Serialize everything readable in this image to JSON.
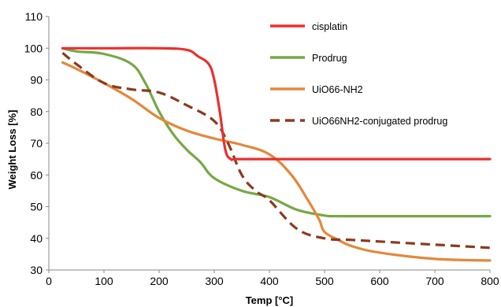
{
  "chart_data": {
    "type": "line",
    "xlabel": "Temp [°C]",
    "ylabel": "Weight Loss [%]",
    "xlim": [
      0,
      800
    ],
    "ylim": [
      30,
      110
    ],
    "xticks": [
      "0",
      "100",
      "200",
      "300",
      "400",
      "500",
      "600",
      "700",
      "800"
    ],
    "yticks": [
      "110",
      "100",
      "90",
      "80",
      "70",
      "60",
      "50",
      "40",
      "30"
    ],
    "grid": false,
    "legend_position": "top-right",
    "series": [
      {
        "name": "cisplatin",
        "color": "#e8312f",
        "dash": "solid",
        "x": [
          25,
          100,
          200,
          250,
          270,
          290,
          300,
          310,
          320,
          330,
          340,
          400,
          500,
          600,
          700,
          800
        ],
        "y": [
          100,
          100,
          100,
          99.5,
          97.5,
          95,
          90,
          80,
          68,
          65,
          65,
          65,
          65,
          65,
          65,
          65
        ]
      },
      {
        "name": "Prodrug",
        "color": "#77a845",
        "dash": "solid",
        "x": [
          25,
          50,
          100,
          150,
          175,
          200,
          225,
          250,
          275,
          300,
          350,
          400,
          450,
          500,
          525,
          600,
          700,
          800
        ],
        "y": [
          100,
          99,
          98.2,
          95,
          89,
          80,
          73,
          68,
          64,
          59,
          55,
          53,
          49,
          47.2,
          47,
          47,
          47,
          47
        ]
      },
      {
        "name": "UiO66-NH2",
        "color": "#e3883b",
        "dash": "solid",
        "x": [
          25,
          50,
          100,
          150,
          200,
          250,
          300,
          350,
          400,
          440,
          470,
          490,
          500,
          525,
          550,
          600,
          700,
          800
        ],
        "y": [
          95.5,
          93.5,
          89,
          84,
          78,
          74,
          71.5,
          69.5,
          66.5,
          60,
          52,
          46,
          42,
          39.5,
          37.5,
          35.5,
          33.5,
          33
        ]
      },
      {
        "name": "UiO66NH2-conjugated prodrug",
        "color": "#8b3a1e",
        "dash": "dashed",
        "x": [
          25,
          50,
          100,
          150,
          200,
          250,
          300,
          325,
          350,
          375,
          400,
          450,
          500,
          550,
          600,
          700,
          800
        ],
        "y": [
          98.5,
          95,
          89,
          87,
          86,
          82,
          77,
          70,
          60,
          55,
          52,
          43,
          40,
          39.5,
          39,
          38,
          37
        ]
      }
    ]
  }
}
